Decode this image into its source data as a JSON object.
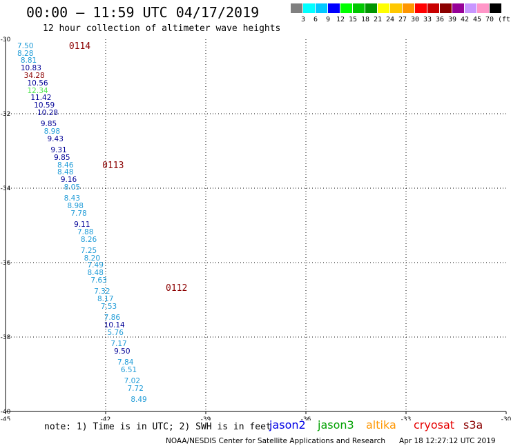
{
  "header": {
    "title": "00:00 – 11:59 UTC 04/17/2019",
    "subtitle": "12 hour collection of altimeter wave heights"
  },
  "color_scale": {
    "labels": [
      "3",
      "6",
      "9",
      "12",
      "15",
      "18",
      "21",
      "24",
      "27",
      "30",
      "33",
      "36",
      "39",
      "42",
      "45",
      "70"
    ],
    "unit": "(ft)",
    "colors": [
      "#808080",
      "#00ffff",
      "#00c8ff",
      "#0000ff",
      "#00ff00",
      "#00c800",
      "#009600",
      "#ffff00",
      "#ffc800",
      "#ff9600",
      "#ff0000",
      "#c80000",
      "#8b0000",
      "#960096",
      "#c896ff",
      "#ff96c8",
      "#000000"
    ]
  },
  "axes": {
    "x_ticks": [
      "-45",
      "-42",
      "-39",
      "-36",
      "-33",
      "-30"
    ],
    "y_ticks": [
      "-30",
      "-32",
      "-34",
      "-36",
      "-38",
      "-40"
    ]
  },
  "passes": [
    {
      "label": "0114",
      "lon": -43.1,
      "lat": -30.2
    },
    {
      "label": "0113",
      "lon": -42.1,
      "lat": -33.4
    },
    {
      "label": "0112",
      "lon": -40.2,
      "lat": -36.7
    }
  ],
  "points": [
    {
      "value": "7.50",
      "lon": -44.4,
      "lat": -30.2,
      "color": "#1e9bd7"
    },
    {
      "value": "8.28",
      "lon": -44.4,
      "lat": -30.4,
      "color": "#1e9bd7"
    },
    {
      "value": "8.81",
      "lon": -44.3,
      "lat": -30.6,
      "color": "#1e9bd7"
    },
    {
      "value": "10.83",
      "lon": -44.3,
      "lat": -30.8,
      "color": "#000096"
    },
    {
      "value": "34.28",
      "lon": -44.2,
      "lat": -31.0,
      "color": "#8b0000"
    },
    {
      "value": "10.56",
      "lon": -44.1,
      "lat": -31.2,
      "color": "#000096"
    },
    {
      "value": "12.34",
      "lon": -44.1,
      "lat": -31.4,
      "color": "#50e650"
    },
    {
      "value": "11.42",
      "lon": -44.0,
      "lat": -31.6,
      "color": "#000096"
    },
    {
      "value": "10.59",
      "lon": -43.9,
      "lat": -31.8,
      "color": "#000096"
    },
    {
      "value": "10.28",
      "lon": -43.8,
      "lat": -32.0,
      "color": "#000096"
    },
    {
      "value": "9.85",
      "lon": -43.7,
      "lat": -32.3,
      "color": "#000096"
    },
    {
      "value": "8.98",
      "lon": -43.6,
      "lat": -32.5,
      "color": "#1e9bd7"
    },
    {
      "value": "9.43",
      "lon": -43.5,
      "lat": -32.7,
      "color": "#000096"
    },
    {
      "value": "9.31",
      "lon": -43.4,
      "lat": -33.0,
      "color": "#000096"
    },
    {
      "value": "9.85",
      "lon": -43.3,
      "lat": -33.2,
      "color": "#000096"
    },
    {
      "value": "8.46",
      "lon": -43.2,
      "lat": -33.4,
      "color": "#1e9bd7"
    },
    {
      "value": "8.48",
      "lon": -43.2,
      "lat": -33.6,
      "color": "#1e9bd7"
    },
    {
      "value": "9.16",
      "lon": -43.1,
      "lat": -33.8,
      "color": "#000096"
    },
    {
      "value": "8.05",
      "lon": -43.0,
      "lat": -34.0,
      "color": "#1e9bd7"
    },
    {
      "value": "8.43",
      "lon": -43.0,
      "lat": -34.3,
      "color": "#1e9bd7"
    },
    {
      "value": "8.98",
      "lon": -42.9,
      "lat": -34.5,
      "color": "#1e9bd7"
    },
    {
      "value": "7.78",
      "lon": -42.8,
      "lat": -34.7,
      "color": "#1e9bd7"
    },
    {
      "value": "9.11",
      "lon": -42.7,
      "lat": -35.0,
      "color": "#000096"
    },
    {
      "value": "7.88",
      "lon": -42.6,
      "lat": -35.2,
      "color": "#1e9bd7"
    },
    {
      "value": "8.26",
      "lon": -42.5,
      "lat": -35.4,
      "color": "#1e9bd7"
    },
    {
      "value": "7.25",
      "lon": -42.5,
      "lat": -35.7,
      "color": "#1e9bd7"
    },
    {
      "value": "8.20",
      "lon": -42.4,
      "lat": -35.9,
      "color": "#1e9bd7"
    },
    {
      "value": "7.49",
      "lon": -42.3,
      "lat": -36.1,
      "color": "#1e9bd7"
    },
    {
      "value": "8.48",
      "lon": -42.3,
      "lat": -36.3,
      "color": "#1e9bd7"
    },
    {
      "value": "7.63",
      "lon": -42.2,
      "lat": -36.5,
      "color": "#1e9bd7"
    },
    {
      "value": "7.32",
      "lon": -42.1,
      "lat": -36.8,
      "color": "#1e9bd7"
    },
    {
      "value": "8.17",
      "lon": -42.0,
      "lat": -37.0,
      "color": "#1e9bd7"
    },
    {
      "value": "7.53",
      "lon": -41.9,
      "lat": -37.2,
      "color": "#1e9bd7"
    },
    {
      "value": "7.86",
      "lon": -41.8,
      "lat": -37.5,
      "color": "#1e9bd7"
    },
    {
      "value": "10.14",
      "lon": -41.8,
      "lat": -37.7,
      "color": "#000096"
    },
    {
      "value": "5.76",
      "lon": -41.7,
      "lat": -37.9,
      "color": "#1e9bd7"
    },
    {
      "value": "7.17",
      "lon": -41.6,
      "lat": -38.2,
      "color": "#1e9bd7"
    },
    {
      "value": "9.50",
      "lon": -41.5,
      "lat": -38.4,
      "color": "#000096"
    },
    {
      "value": "7.84",
      "lon": -41.4,
      "lat": -38.7,
      "color": "#1e9bd7"
    },
    {
      "value": "6.51",
      "lon": -41.3,
      "lat": -38.9,
      "color": "#1e9bd7"
    },
    {
      "value": "7.02",
      "lon": -41.2,
      "lat": -39.2,
      "color": "#1e9bd7"
    },
    {
      "value": "7.72",
      "lon": -41.1,
      "lat": -39.4,
      "color": "#1e9bd7"
    },
    {
      "value": "8.49",
      "lon": -41.0,
      "lat": -39.7,
      "color": "#1e9bd7"
    }
  ],
  "footer": {
    "note": "note: 1) Time is in UTC; 2) SWH is in feet",
    "legend": [
      {
        "label": "jason2",
        "color": "#0000e6"
      },
      {
        "label": "jason3",
        "color": "#00a000"
      },
      {
        "label": "altika",
        "color": "#ff9600"
      },
      {
        "label": "cryosat",
        "color": "#e60000"
      },
      {
        "label": "s3a",
        "color": "#8b0000"
      }
    ],
    "credit": "NOAA/NESDIS Center for Satellite Applications and Research",
    "timestamp": "Apr 18 12:27:12 UTC 2019"
  }
}
